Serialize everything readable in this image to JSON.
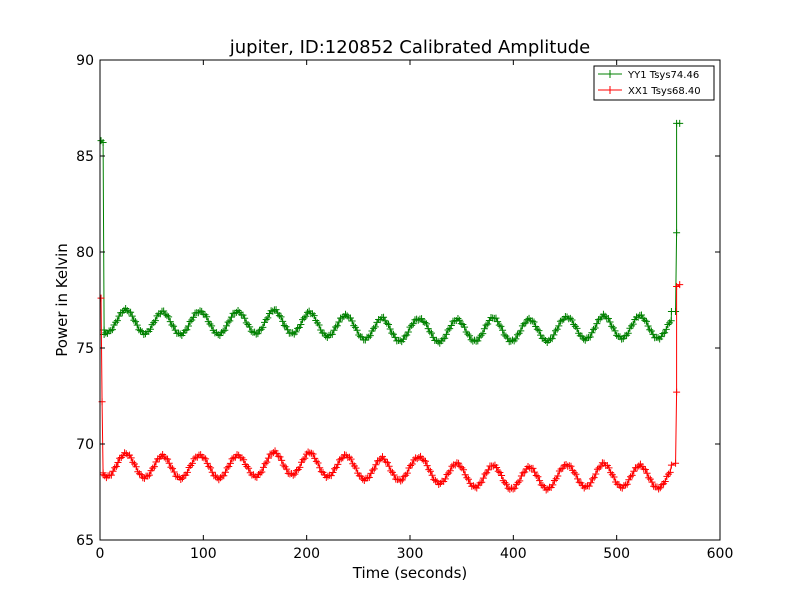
{
  "chart_data": {
    "type": "line",
    "title": "jupiter, ID:120852 Calibrated Amplitude",
    "xlabel": "Time (seconds)",
    "ylabel": "Power in Kelvin",
    "xlim": [
      0,
      600
    ],
    "ylim": [
      65,
      90
    ],
    "xticks": [
      0,
      100,
      200,
      300,
      400,
      500,
      600
    ],
    "yticks": [
      65,
      70,
      75,
      80,
      85,
      90
    ],
    "grid": false,
    "legend_position": "top-right",
    "marker": "+",
    "series": [
      {
        "name": "YY1 Tsys74.46",
        "color": "#008000",
        "baseline": 76.3,
        "oscillation_amplitude": 0.6,
        "oscillation_period_s": 36,
        "peaks": [
          {
            "x": 25,
            "y": 77.0
          },
          {
            "x": 60,
            "y": 76.9
          },
          {
            "x": 97,
            "y": 76.9
          },
          {
            "x": 133,
            "y": 76.9
          },
          {
            "x": 168,
            "y": 77.0
          },
          {
            "x": 202,
            "y": 76.9
          },
          {
            "x": 238,
            "y": 76.7
          },
          {
            "x": 272,
            "y": 76.6
          },
          {
            "x": 310,
            "y": 76.5
          },
          {
            "x": 345,
            "y": 76.5
          },
          {
            "x": 380,
            "y": 76.6
          },
          {
            "x": 415,
            "y": 76.5
          },
          {
            "x": 452,
            "y": 76.6
          },
          {
            "x": 487,
            "y": 76.7
          },
          {
            "x": 522,
            "y": 76.7
          }
        ],
        "start_points": [
          {
            "x": 1,
            "y": 85.8
          },
          {
            "x": 3,
            "y": 85.7
          },
          {
            "x": 4,
            "y": 75.7
          }
        ],
        "end_points": [
          {
            "x": 553,
            "y": 76.9
          },
          {
            "x": 557,
            "y": 76.9
          },
          {
            "x": 558,
            "y": 81.0
          },
          {
            "x": 558,
            "y": 86.7
          },
          {
            "x": 561,
            "y": 86.7
          }
        ],
        "t_start": 4,
        "t_end": 553
      },
      {
        "name": "XX1 Tsys68.40",
        "color": "#ff0000",
        "baseline": 68.8,
        "oscillation_amplitude": 0.6,
        "oscillation_period_s": 36,
        "peaks": [
          {
            "x": 25,
            "y": 69.5
          },
          {
            "x": 60,
            "y": 69.4
          },
          {
            "x": 97,
            "y": 69.4
          },
          {
            "x": 133,
            "y": 69.4
          },
          {
            "x": 168,
            "y": 69.6
          },
          {
            "x": 202,
            "y": 69.6
          },
          {
            "x": 238,
            "y": 69.4
          },
          {
            "x": 272,
            "y": 69.3
          },
          {
            "x": 310,
            "y": 69.3
          },
          {
            "x": 345,
            "y": 69.0
          },
          {
            "x": 380,
            "y": 68.9
          },
          {
            "x": 415,
            "y": 68.8
          },
          {
            "x": 452,
            "y": 68.9
          },
          {
            "x": 487,
            "y": 69.0
          },
          {
            "x": 522,
            "y": 68.9
          }
        ],
        "start_points": [
          {
            "x": 1,
            "y": 77.6
          },
          {
            "x": 2,
            "y": 72.2
          },
          {
            "x": 3,
            "y": 68.4
          }
        ],
        "end_points": [
          {
            "x": 553,
            "y": 68.9
          },
          {
            "x": 557,
            "y": 69.0
          },
          {
            "x": 558,
            "y": 72.7
          },
          {
            "x": 558,
            "y": 78.2
          },
          {
            "x": 561,
            "y": 78.3
          }
        ],
        "t_start": 3,
        "t_end": 553
      }
    ]
  }
}
